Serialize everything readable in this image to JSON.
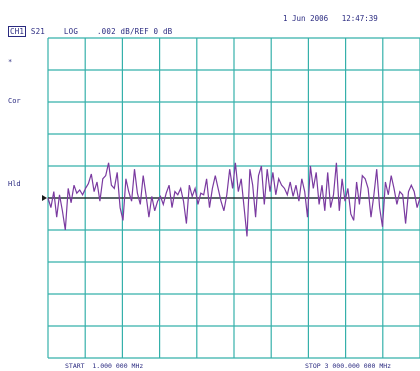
{
  "header": {
    "channel": "CH1",
    "parameter": "S21",
    "format": "LOG",
    "scale": ".002 dB/",
    "reference": "REF 0 dB",
    "date": "1 Jun 2006",
    "time": "12:47:39"
  },
  "side_labels": {
    "marker": "*",
    "correction": "Cor",
    "hold": "Hld"
  },
  "footer": {
    "start": "START  1.000 000 MHz",
    "stop": "STOP 3 000.000 000 MHz"
  },
  "colors": {
    "grid": "#35b0aa",
    "trace": "#7a3aa0",
    "reference_line": "#1a1a1a",
    "text": "#2a2a80"
  },
  "chart_data": {
    "type": "line",
    "x_start_mhz": 1.0,
    "x_stop_mhz": 3000.0,
    "y_scale_db_per_div": 0.002,
    "y_reference_db": 0,
    "grid": true,
    "divisions_x": 10,
    "divisions_y": 10,
    "series": [
      {
        "values": [
          0.0,
          -0.0006,
          0.0004,
          -0.0012,
          0.0002,
          -0.0008,
          -0.002,
          0.0006,
          -0.0003,
          0.0008,
          0.0003,
          0.0005,
          0.0002,
          0.0006,
          0.0009,
          0.0015,
          0.0004,
          0.001,
          -0.0002,
          0.0012,
          0.0014,
          0.0022,
          0.0008,
          0.0006,
          0.0016,
          -0.0006,
          -0.0014,
          0.0012,
          0.0004,
          -0.0002,
          0.0018,
          0.0003,
          -0.0004,
          0.0014,
          0.0002,
          -0.0012,
          0.0001,
          -0.0008,
          -0.0002,
          0.0001,
          -0.0004,
          0.0003,
          0.0008,
          -0.0006,
          0.0004,
          0.0002,
          0.0006,
          -0.0002,
          -0.0016,
          0.0008,
          0.0001,
          0.0006,
          -0.0004,
          0.0003,
          0.0002,
          0.0012,
          -0.0006,
          0.0006,
          0.0014,
          0.0006,
          -0.0002,
          -0.0008,
          0.0002,
          0.0018,
          0.0006,
          0.0022,
          0.0004,
          0.0012,
          -0.0006,
          -0.0024,
          0.0018,
          0.0008,
          -0.0012,
          0.0014,
          0.002,
          -0.0004,
          0.0018,
          0.0004,
          0.0016,
          0.0002,
          0.0012,
          0.0008,
          0.0006,
          0.0002,
          0.001,
          0.0001,
          0.0008,
          -0.0002,
          0.0012,
          0.0004,
          -0.0012,
          0.002,
          0.0006,
          0.0016,
          -0.0004,
          0.0008,
          -0.0008,
          0.0016,
          -0.0006,
          0.0002,
          0.0022,
          -0.0008,
          0.0012,
          -0.0002,
          0.0006,
          -0.001,
          -0.0014,
          0.001,
          -0.0004,
          0.0014,
          0.0012,
          0.0006,
          -0.0012,
          0.0002,
          0.0018,
          -0.0006,
          -0.0018,
          0.001,
          0.0002,
          0.0014,
          0.0006,
          -0.0004,
          0.0004,
          0.0002,
          -0.0016,
          0.0004,
          0.0008,
          0.0004,
          -0.0006,
          0.0
        ]
      }
    ]
  }
}
